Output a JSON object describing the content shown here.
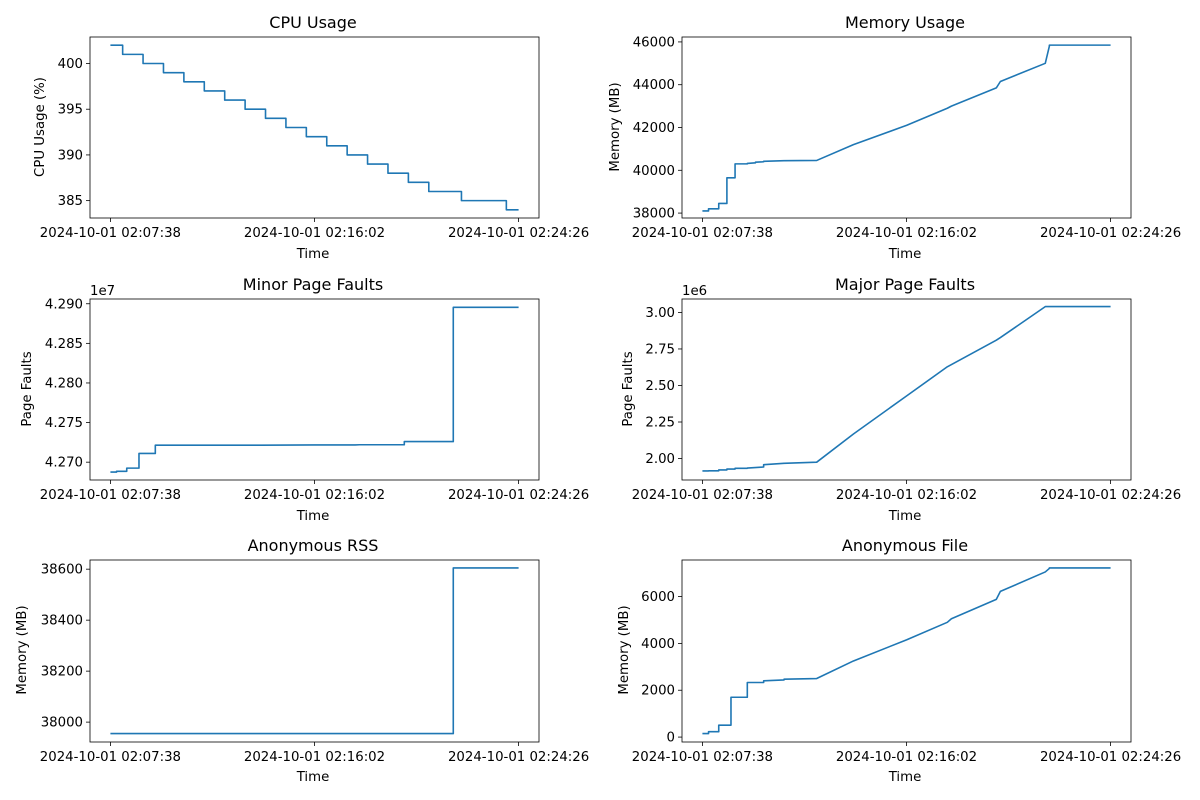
{
  "colors": {
    "series": "#1f77b4"
  },
  "chart_data": [
    {
      "type": "line",
      "title": "CPU Usage",
      "xlabel": "Time",
      "ylabel": "CPU Usage (%)",
      "x_ticks": [
        "2024-10-01 02:07:38",
        "2024-10-01 02:16:02",
        "2024-10-01 02:24:26"
      ],
      "y_ticks": [
        385,
        390,
        395,
        400
      ],
      "y_tick_labels": [
        "385",
        "390",
        "395",
        "400"
      ],
      "xlim": [
        -0.05,
        1.05
      ],
      "ylim": [
        383.1,
        402.9
      ],
      "grid": false,
      "series": [
        {
          "x": [
            0,
            0.03,
            0.03,
            0.08,
            0.08,
            0.13,
            0.13,
            0.18,
            0.18,
            0.23,
            0.23,
            0.28,
            0.28,
            0.33,
            0.33,
            0.38,
            0.38,
            0.43,
            0.43,
            0.48,
            0.48,
            0.53,
            0.53,
            0.58,
            0.58,
            0.63,
            0.63,
            0.68,
            0.68,
            0.73,
            0.73,
            0.78,
            0.78,
            0.86,
            0.86,
            0.97,
            0.97,
            1
          ],
          "y": [
            402,
            402,
            401,
            401,
            400,
            400,
            399,
            399,
            398,
            398,
            397,
            397,
            396,
            396,
            395,
            395,
            394,
            394,
            393,
            393,
            392,
            392,
            391,
            391,
            390,
            390,
            389,
            389,
            388,
            388,
            387,
            387,
            386,
            386,
            385,
            385,
            384,
            384
          ]
        }
      ]
    },
    {
      "type": "line",
      "title": "Memory Usage",
      "xlabel": "Time",
      "ylabel": "Memory (MB)",
      "x_ticks": [
        "2024-10-01 02:07:38",
        "2024-10-01 02:16:02",
        "2024-10-01 02:24:26"
      ],
      "y_ticks": [
        38000,
        40000,
        42000,
        44000,
        46000
      ],
      "y_tick_labels": [
        "38000",
        "40000",
        "42000",
        "44000",
        "46000"
      ],
      "xlim": [
        -0.05,
        1.05
      ],
      "ylim": [
        37770,
        46230
      ],
      "grid": false,
      "series": [
        {
          "x": [
            0,
            0.015,
            0.015,
            0.04,
            0.04,
            0.06,
            0.06,
            0.08,
            0.08,
            0.11,
            0.11,
            0.13,
            0.13,
            0.15,
            0.15,
            0.2,
            0.2,
            0.28,
            0.37,
            0.5,
            0.6,
            0.61,
            0.72,
            0.73,
            0.84,
            0.84,
            0.85,
            0.85,
            1
          ],
          "y": [
            38100,
            38100,
            38200,
            38200,
            38450,
            38450,
            39650,
            39650,
            40300,
            40300,
            40320,
            40350,
            40380,
            40400,
            40420,
            40450,
            40450,
            40460,
            41200,
            42100,
            42900,
            43000,
            43850,
            44150,
            45000,
            45000,
            45800,
            45850,
            45850
          ]
        }
      ]
    },
    {
      "type": "line",
      "title": "Minor Page Faults",
      "xlabel": "Time",
      "ylabel": "Page Faults",
      "offset_text": "1e7",
      "x_ticks": [
        "2024-10-01 02:07:38",
        "2024-10-01 02:16:02",
        "2024-10-01 02:24:26"
      ],
      "y_ticks": [
        42700000,
        42750000,
        42800000,
        42850000,
        42900000
      ],
      "y_tick_labels": [
        "4.270",
        "4.275",
        "4.280",
        "4.285",
        "4.290"
      ],
      "xlim": [
        -0.05,
        1.05
      ],
      "ylim": [
        42677500,
        42906000
      ],
      "grid": false,
      "series": [
        {
          "x": [
            0,
            0.015,
            0.015,
            0.04,
            0.04,
            0.07,
            0.07,
            0.08,
            0.08,
            0.08,
            0.08,
            0.11,
            0.11,
            0.11,
            0.11,
            0.15,
            0.37,
            0.5,
            0.6,
            0.61,
            0.72,
            0.72,
            0.72,
            0.72,
            0.84,
            0.84,
            0.84,
            0.84,
            1
          ],
          "y": [
            42687500,
            42687500,
            42688500,
            42688500,
            42692500,
            42692500,
            42711000,
            42711000,
            42711000,
            42711000,
            42711000,
            42711000,
            42721500,
            42721500,
            42721500,
            42721500,
            42721500,
            42721800,
            42721800,
            42722000,
            42722000,
            42722000,
            42726000,
            42726000,
            42726000,
            42726000,
            42895500,
            42895500,
            42895500
          ]
        }
      ]
    },
    {
      "type": "line",
      "title": "Major Page Faults",
      "xlabel": "Time",
      "ylabel": "Page Faults",
      "offset_text": "1e6",
      "x_ticks": [
        "2024-10-01 02:07:38",
        "2024-10-01 02:16:02",
        "2024-10-01 02:24:26"
      ],
      "y_ticks": [
        2000000,
        2250000,
        2500000,
        2750000,
        3000000
      ],
      "y_tick_labels": [
        "2.00",
        "2.25",
        "2.50",
        "2.75",
        "3.00"
      ],
      "xlim": [
        -0.05,
        1.05
      ],
      "ylim": [
        1853000,
        3092000
      ],
      "grid": false,
      "series": [
        {
          "x": [
            0,
            0.015,
            0.015,
            0.04,
            0.04,
            0.06,
            0.06,
            0.08,
            0.08,
            0.11,
            0.11,
            0.15,
            0.15,
            0.2,
            0.2,
            0.28,
            0.37,
            0.5,
            0.6,
            0.72,
            0.73,
            0.84,
            0.84,
            1
          ],
          "y": [
            1915000,
            1915000,
            1916000,
            1916000,
            1922000,
            1922000,
            1928000,
            1928000,
            1933000,
            1933000,
            1935000,
            1942000,
            1958000,
            1967000,
            1967000,
            1975000,
            2168000,
            2428000,
            2628000,
            2810000,
            2828000,
            3040000,
            3040000,
            3040000
          ]
        }
      ]
    },
    {
      "type": "line",
      "title": "Anonymous RSS",
      "xlabel": "Time",
      "ylabel": "Memory (MB)",
      "x_ticks": [
        "2024-10-01 02:07:38",
        "2024-10-01 02:16:02",
        "2024-10-01 02:24:26"
      ],
      "y_ticks": [
        38000,
        38200,
        38400,
        38600
      ],
      "y_tick_labels": [
        "38000",
        "38200",
        "38400",
        "38600"
      ],
      "xlim": [
        -0.05,
        1.05
      ],
      "ylim": [
        37922,
        38636
      ],
      "grid": false,
      "series": [
        {
          "x": [
            0,
            0.84,
            0.84,
            1
          ],
          "y": [
            37955,
            37955,
            38605,
            38605
          ]
        }
      ]
    },
    {
      "type": "line",
      "title": "Anonymous File",
      "xlabel": "Time",
      "ylabel": "Memory (MB)",
      "x_ticks": [
        "2024-10-01 02:07:38",
        "2024-10-01 02:16:02",
        "2024-10-01 02:24:26"
      ],
      "y_ticks": [
        0,
        2000,
        4000,
        6000
      ],
      "y_tick_labels": [
        "0",
        "2000",
        "4000",
        "6000"
      ],
      "xlim": [
        -0.05,
        1.05
      ],
      "ylim": [
        -210,
        7560
      ],
      "grid": false,
      "series": [
        {
          "x": [
            0,
            0.015,
            0.015,
            0.04,
            0.04,
            0.07,
            0.07,
            0.085,
            0.085,
            0.11,
            0.11,
            0.15,
            0.15,
            0.2,
            0.2,
            0.28,
            0.37,
            0.5,
            0.6,
            0.61,
            0.72,
            0.73,
            0.84,
            0.84,
            0.85,
            0.85,
            1
          ],
          "y": [
            150,
            150,
            230,
            230,
            510,
            510,
            1700,
            1700,
            1700,
            1700,
            2330,
            2330,
            2400,
            2440,
            2470,
            2500,
            3250,
            4150,
            4900,
            5050,
            5880,
            6220,
            7050,
            7050,
            7200,
            7220,
            7220
          ]
        }
      ]
    }
  ]
}
